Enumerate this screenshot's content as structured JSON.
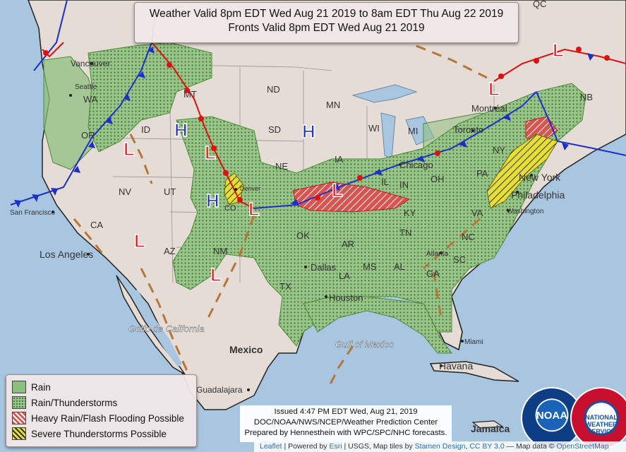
{
  "title": {
    "line1": "Weather Valid 8pm EDT Wed Aug 21 2019 to 8am EDT Thu Aug 22 2019",
    "line2": "Fronts Valid 8pm EDT Wed Aug 21 2019"
  },
  "legend": {
    "items": [
      {
        "label": "Rain",
        "color": "#8fbf7f"
      },
      {
        "label": "Rain/Thunderstorms",
        "color": "#8fbf7f"
      },
      {
        "label": "Heavy Rain/Flash Flooding Possible",
        "color": "#d9534f"
      },
      {
        "label": "Severe Thunderstorms Possible",
        "color": "#e8e030"
      }
    ]
  },
  "issued": {
    "line1": "Issued 4:47 PM EDT Wed, Aug 21, 2019",
    "line2": "DOC/NOAA/NWS/NCEP/Weather Prediction Center",
    "line3": "Prepared by Hennesthein with WPC/SPC/NHC forecasts."
  },
  "attribution": {
    "leaflet": "Leaflet",
    "powered": "| Powered by",
    "esri": "Esri",
    "usgs": "| USGS, Map tiles by",
    "stamen": "Stamen Design",
    "cc": "CC BY 3.0",
    "mapdata": "— Map data ©",
    "osm": "OpenStreetMap"
  },
  "logos": {
    "noaa": "NOAA",
    "nws": "NATIONAL WEATHER SERVICE"
  },
  "map_labels": {
    "vancouver": "Vancouver",
    "seattle": "Seattle",
    "wa": "WA",
    "or": "OR",
    "id": "ID",
    "mt": "MT",
    "nd": "ND",
    "sd": "SD",
    "ne": "NE",
    "mn": "MN",
    "wi": "WI",
    "ia": "IA",
    "mi": "MI",
    "il": "IL",
    "in": "IN",
    "oh": "OH",
    "ny": "NY",
    "pa": "PA",
    "nv": "NV",
    "ut": "UT",
    "ca": "CA",
    "az": "AZ",
    "nm": "NM",
    "ok": "OK",
    "ar": "AR",
    "tn": "TN",
    "ky": "KY",
    "va": "VA",
    "nc": "NC",
    "sc": "SC",
    "ga": "GA",
    "al": "AL",
    "ms": "MS",
    "la": "LA",
    "tx": "TX",
    "nb": "NB",
    "qc": "QC",
    "sanfrancisco": "San Francisco",
    "losangeles": "Los Angeles",
    "dallas": "Dallas",
    "houston": "Houston",
    "chicago": "Chicago",
    "toronto": "Toronto",
    "montreal": "Montréal",
    "newyork": "New York",
    "philadelphia": "Philadelphia",
    "washington": "Washington",
    "atlanta": "Atlanta",
    "miami": "Miami",
    "havana": "Havana",
    "jamaica": "Jamaica",
    "mexico": "Mexico",
    "guadalajara": "Guadalajara",
    "gulfmexico": "Gulf of Mexico",
    "golfocal": "Golfo de California",
    "denver": "Denver",
    "co": "CO"
  },
  "pressure_centers": [
    {
      "type": "H",
      "color": "#1c2fc9"
    },
    {
      "type": "H",
      "color": "#1c2fc9"
    },
    {
      "type": "H",
      "color": "#1c2fc9"
    },
    {
      "type": "L",
      "color": "#e01010"
    },
    {
      "type": "L",
      "color": "#e01010"
    },
    {
      "type": "L",
      "color": "#e01010"
    },
    {
      "type": "L",
      "color": "#e01010"
    },
    {
      "type": "L",
      "color": "#e01010"
    },
    {
      "type": "L",
      "color": "#e01010"
    },
    {
      "type": "L",
      "color": "#e01010"
    },
    {
      "type": "L",
      "color": "#e01010"
    }
  ],
  "colors": {
    "land": "#e6dcd6",
    "water": "#a9c6e0",
    "rain": "#8fbf7f",
    "heavy": "#d9534f",
    "severe": "#e8e030",
    "cold_front": "#1c2fc9",
    "warm_front": "#e01010",
    "trough": "#b5763a"
  }
}
